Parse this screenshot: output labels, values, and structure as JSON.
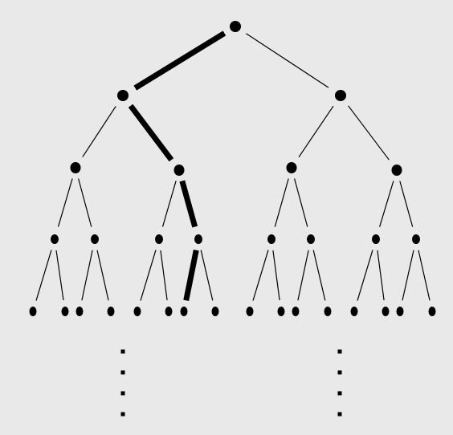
{
  "diagram": {
    "type": "binary-tree",
    "depth_levels": 5,
    "colors": {
      "background": "#e9e9e9",
      "edge": "#000000",
      "node": "#000000"
    },
    "continuation_dots": [
      {
        "under_subtree": "left",
        "count": 4
      },
      {
        "under_subtree": "right",
        "count": 4
      }
    ],
    "bold_path": [
      {
        "from": "root",
        "to": "L"
      },
      {
        "from": "L",
        "to": "LR"
      },
      {
        "from": "LR",
        "to": "LRR"
      },
      {
        "from": "LRR",
        "to": "LRRL"
      }
    ]
  }
}
